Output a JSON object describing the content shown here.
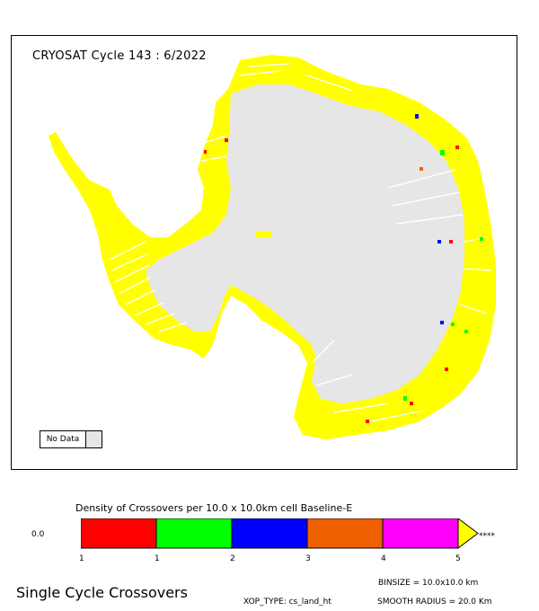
{
  "map": {
    "title": "CRYOSAT Cycle 143 : 6/2022",
    "nodata_label": "No Data",
    "colors": {
      "land": "#e6e6e6",
      "coverage": "#ffff00",
      "class_1": "#ff0000",
      "class_2": "#00ff00",
      "class_3": "#0000ff",
      "class_4": "#ee6000",
      "class_5": "#ff00ff",
      "over": "#ffff00"
    }
  },
  "legend": {
    "title": "Density of Crossovers per  10.0 x  10.0km cell Baseline-E",
    "zero_label": "0.0",
    "ticks": [
      "1",
      "1",
      "2",
      "3",
      "4",
      "5"
    ],
    "overflow_label": "****",
    "colors": [
      "#ff0000",
      "#00ff00",
      "#0000ff",
      "#ee6000",
      "#ff00ff"
    ]
  },
  "footer": {
    "title": "Single Cycle Crossovers",
    "binsize": "BINSIZE =  10.0x10.0  km",
    "xop_type": "XOP_TYPE:  cs_land_ht",
    "smooth_radius": "SMOOTH RADIUS =   20.0  Km"
  }
}
